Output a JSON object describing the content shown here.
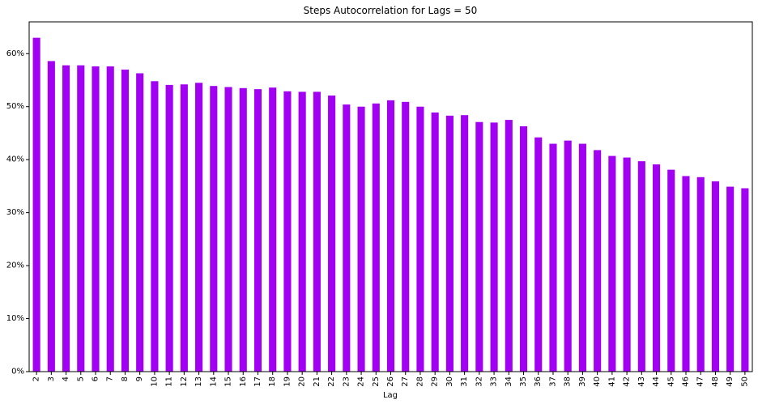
{
  "chart_data": {
    "type": "bar",
    "title": "Steps Autocorrelation for Lags = 50",
    "xlabel": "Lag",
    "ylabel": "",
    "ylim": [
      0,
      0.66
    ],
    "yticks": [
      0,
      0.1,
      0.2,
      0.3,
      0.4,
      0.5,
      0.6
    ],
    "ytick_labels": [
      "0%",
      "10%",
      "20%",
      "30%",
      "40%",
      "50%",
      "60%"
    ],
    "grid": false,
    "legend": "none",
    "bar_color": "#a100f2",
    "categories": [
      "2",
      "3",
      "4",
      "5",
      "6",
      "7",
      "8",
      "9",
      "10",
      "11",
      "12",
      "13",
      "14",
      "15",
      "16",
      "17",
      "18",
      "19",
      "20",
      "21",
      "22",
      "23",
      "24",
      "25",
      "26",
      "27",
      "28",
      "29",
      "30",
      "31",
      "32",
      "33",
      "34",
      "35",
      "36",
      "37",
      "38",
      "39",
      "40",
      "41",
      "42",
      "43",
      "44",
      "45",
      "46",
      "47",
      "48",
      "49",
      "50"
    ],
    "values": [
      0.63,
      0.586,
      0.578,
      0.578,
      0.576,
      0.576,
      0.57,
      0.563,
      0.548,
      0.541,
      0.542,
      0.545,
      0.539,
      0.537,
      0.535,
      0.533,
      0.536,
      0.529,
      0.528,
      0.528,
      0.521,
      0.504,
      0.5,
      0.506,
      0.512,
      0.509,
      0.5,
      0.489,
      0.483,
      0.484,
      0.471,
      0.47,
      0.475,
      0.463,
      0.442,
      0.43,
      0.436,
      0.43,
      0.418,
      0.407,
      0.404,
      0.397,
      0.391,
      0.381,
      0.369,
      0.367,
      0.359,
      0.349,
      0.346
    ]
  }
}
